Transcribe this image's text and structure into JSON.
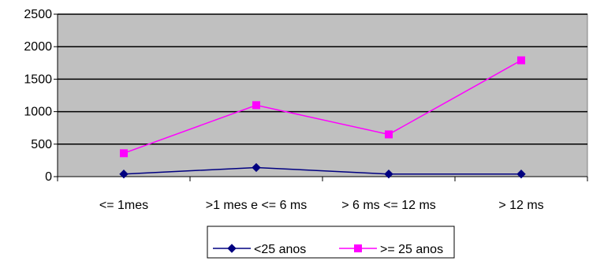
{
  "chart_data": {
    "type": "line",
    "title": "",
    "xlabel": "",
    "ylabel": "",
    "categories": [
      "<= 1mes",
      ">1 mes e <= 6 ms",
      "> 6 ms <= 12 ms",
      "> 12 ms"
    ],
    "ylim": [
      0,
      2500
    ],
    "yticks": [
      "0",
      "500",
      "1000",
      "1500",
      "2000",
      "2500"
    ],
    "grid": true,
    "legend_position": "bottom",
    "plot_background": "#c0c0c0",
    "series": [
      {
        "name": "<25 anos",
        "values": [
          40,
          140,
          40,
          40
        ],
        "color": "#000080",
        "marker": "diamond"
      },
      {
        "name": ">= 25 anos",
        "values": [
          360,
          1100,
          650,
          1790
        ],
        "color": "#ff00ff",
        "marker": "square"
      }
    ]
  }
}
